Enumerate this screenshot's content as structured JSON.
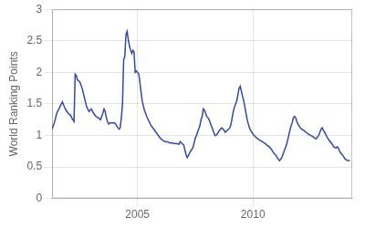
{
  "chart_data": {
    "type": "line",
    "ylabel": "World Ranking Points",
    "color": "#3348a8",
    "xlim": [
      2001.3,
      2014.3
    ],
    "xticks": [
      2005,
      2010
    ],
    "ylim": [
      0,
      3.0
    ],
    "yticks": [
      0,
      0.5,
      1,
      1.5,
      2,
      2.5,
      3
    ],
    "grid": true,
    "x": [
      2001.3,
      2001.4,
      2001.5,
      2001.6,
      2001.7,
      2001.75,
      2001.8,
      2001.9,
      2002.0,
      2002.1,
      2002.15,
      2002.2,
      2002.25,
      2002.3,
      2002.35,
      2002.4,
      2002.5,
      2002.6,
      2002.7,
      2002.8,
      2002.9,
      2003.0,
      2003.1,
      2003.2,
      2003.3,
      2003.4,
      2003.5,
      2003.55,
      2003.6,
      2003.65,
      2003.7,
      2003.75,
      2003.8,
      2003.9,
      2004.0,
      2004.05,
      2004.1,
      2004.15,
      2004.2,
      2004.25,
      2004.3,
      2004.35,
      2004.4,
      2004.45,
      2004.5,
      2004.55,
      2004.6,
      2004.65,
      2004.7,
      2004.75,
      2004.8,
      2004.85,
      2004.9,
      2004.95,
      2005.0,
      2005.05,
      2005.1,
      2005.15,
      2005.2,
      2005.3,
      2005.4,
      2005.5,
      2005.6,
      2005.7,
      2005.8,
      2005.9,
      2006.0,
      2006.1,
      2006.2,
      2006.3,
      2006.4,
      2006.5,
      2006.6,
      2006.7,
      2006.8,
      2006.85,
      2006.9,
      2007.0,
      2007.1,
      2007.15,
      2007.2,
      2007.3,
      2007.4,
      2007.45,
      2007.5,
      2007.6,
      2007.65,
      2007.7,
      2007.75,
      2007.8,
      2007.85,
      2007.9,
      2007.95,
      2008.0,
      2008.05,
      2008.1,
      2008.15,
      2008.2,
      2008.25,
      2008.3,
      2008.35,
      2008.4,
      2008.45,
      2008.5,
      2008.55,
      2008.6,
      2008.65,
      2008.7,
      2008.75,
      2008.8,
      2009.0,
      2009.05,
      2009.1,
      2009.15,
      2009.2,
      2009.25,
      2009.3,
      2009.35,
      2009.4,
      2009.45,
      2009.5,
      2009.55,
      2009.6,
      2009.65,
      2009.7,
      2009.75,
      2009.8,
      2009.85,
      2009.9,
      2009.95,
      2010.0,
      2010.05,
      2010.1,
      2010.15,
      2010.2,
      2010.3,
      2010.4,
      2010.5,
      2010.6,
      2010.7,
      2010.8,
      2010.9,
      2011.0,
      2011.05,
      2011.1,
      2011.15,
      2011.2,
      2011.25,
      2011.3,
      2011.35,
      2011.4,
      2011.45,
      2011.5,
      2011.55,
      2011.6,
      2011.65,
      2011.7,
      2011.75,
      2011.8,
      2011.85,
      2011.9,
      2011.95,
      2012.0,
      2012.05,
      2012.1,
      2012.2,
      2012.3,
      2012.4,
      2012.5,
      2012.6,
      2012.7,
      2012.75,
      2012.8,
      2012.85,
      2012.9,
      2012.95,
      2013.0,
      2013.05,
      2013.1,
      2013.15,
      2013.2,
      2013.25,
      2013.3,
      2013.35,
      2013.4,
      2013.45,
      2013.5,
      2013.6,
      2013.65,
      2013.7,
      2013.75,
      2013.8,
      2013.85,
      2013.9,
      2013.95,
      2014.0,
      2014.1,
      2014.2
    ],
    "values": [
      1.1,
      1.2,
      1.35,
      1.42,
      1.5,
      1.53,
      1.48,
      1.4,
      1.35,
      1.32,
      1.28,
      1.25,
      1.22,
      1.97,
      1.95,
      1.88,
      1.85,
      1.75,
      1.6,
      1.45,
      1.38,
      1.42,
      1.35,
      1.3,
      1.28,
      1.25,
      1.35,
      1.42,
      1.38,
      1.28,
      1.22,
      1.18,
      1.2,
      1.2,
      1.2,
      1.18,
      1.15,
      1.12,
      1.1,
      1.12,
      1.28,
      1.5,
      2.2,
      2.25,
      2.6,
      2.65,
      2.52,
      2.42,
      2.35,
      2.3,
      2.35,
      2.32,
      2.0,
      2.02,
      2.0,
      1.98,
      1.85,
      1.7,
      1.55,
      1.4,
      1.3,
      1.22,
      1.15,
      1.1,
      1.05,
      1.0,
      0.95,
      0.92,
      0.9,
      0.9,
      0.88,
      0.88,
      0.87,
      0.87,
      0.86,
      0.9,
      0.88,
      0.85,
      0.7,
      0.65,
      0.68,
      0.75,
      0.8,
      0.88,
      0.95,
      1.05,
      1.1,
      1.15,
      1.25,
      1.3,
      1.42,
      1.4,
      1.35,
      1.3,
      1.28,
      1.25,
      1.2,
      1.15,
      1.1,
      1.05,
      1.0,
      1.0,
      1.02,
      1.05,
      1.08,
      1.1,
      1.12,
      1.1,
      1.08,
      1.05,
      1.12,
      1.18,
      1.28,
      1.38,
      1.45,
      1.5,
      1.55,
      1.65,
      1.75,
      1.78,
      1.7,
      1.62,
      1.55,
      1.45,
      1.35,
      1.25,
      1.18,
      1.12,
      1.08,
      1.05,
      1.02,
      1.0,
      0.98,
      0.96,
      0.95,
      0.92,
      0.9,
      0.88,
      0.85,
      0.82,
      0.78,
      0.72,
      0.68,
      0.65,
      0.62,
      0.6,
      0.62,
      0.65,
      0.7,
      0.75,
      0.8,
      0.85,
      0.92,
      1.0,
      1.08,
      1.15,
      1.2,
      1.28,
      1.3,
      1.28,
      1.22,
      1.18,
      1.15,
      1.12,
      1.1,
      1.08,
      1.05,
      1.02,
      1.0,
      0.98,
      0.95,
      0.95,
      0.98,
      1.0,
      1.05,
      1.1,
      1.12,
      1.08,
      1.05,
      1.02,
      0.98,
      0.95,
      0.92,
      0.9,
      0.88,
      0.85,
      0.82,
      0.8,
      0.82,
      0.8,
      0.75,
      0.72,
      0.7,
      0.68,
      0.65,
      0.62,
      0.6,
      0.6
    ]
  }
}
